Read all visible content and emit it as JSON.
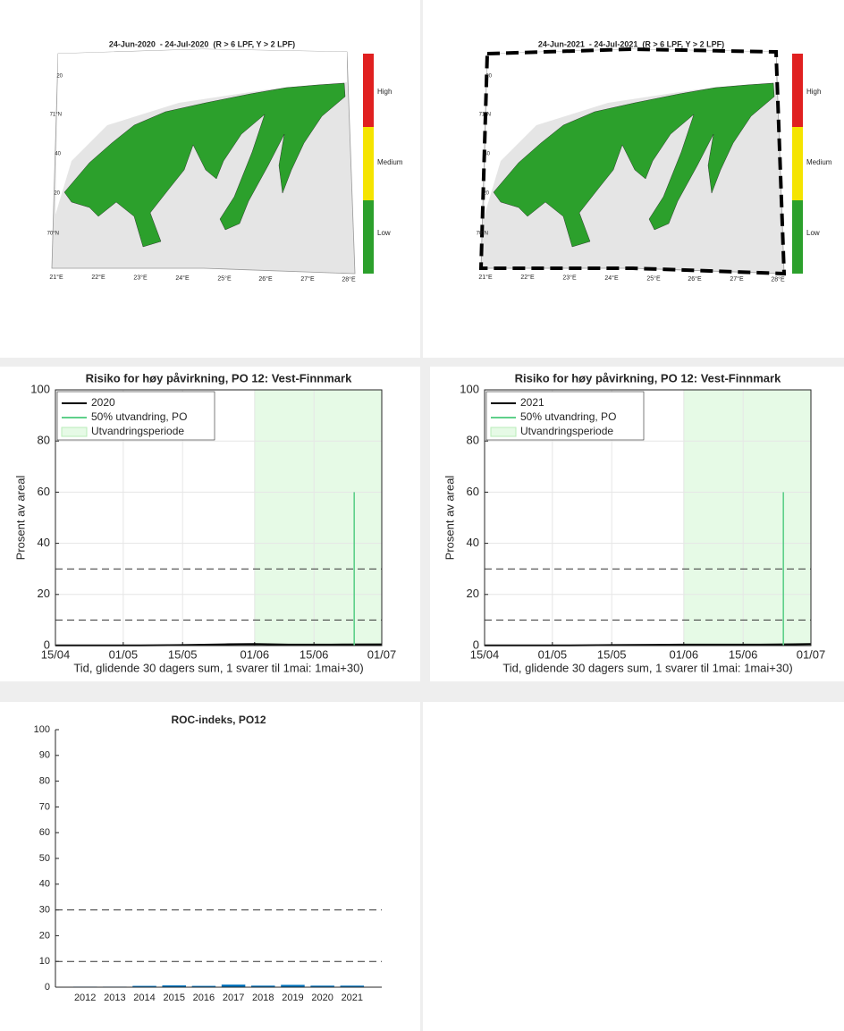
{
  "maps": [
    {
      "title": "24-Jun-2020  - 24-Jul-2020  (R > 6 LPF, Y > 2 LPF)",
      "lat_labels": [
        "20",
        "71°N",
        "40",
        "20",
        "70°N"
      ],
      "lon_labels": [
        "21°E",
        "22°E",
        "23°E",
        "24°E",
        "25°E",
        "26°E",
        "27°E",
        "28°E"
      ],
      "colorbar_labels": [
        "High",
        "Medium",
        "Low"
      ],
      "dashed_border": false
    },
    {
      "title": "24-Jun-2021  - 24-Jul-2021  (R > 6 LPF, Y > 2 LPF)",
      "lat_labels": [
        "20",
        "71°N",
        "40",
        "20",
        "70°N"
      ],
      "lon_labels": [
        "21°E",
        "22°E",
        "23°E",
        "24°E",
        "25°E",
        "26°E",
        "27°E",
        "28°E"
      ],
      "colorbar_labels": [
        "High",
        "Medium",
        "Low"
      ],
      "dashed_border": true
    }
  ],
  "chart_data": [
    {
      "type": "line",
      "title": "Risiko for høy påvirkning, PO 12: Vest-Finnmark",
      "ylabel": "Prosent av areal",
      "xlabel": "Tid, glidende 30 dagers sum, 1 svarer til 1mai: 1mai+30)",
      "xlim": [
        0,
        77
      ],
      "xticks": [
        {
          "value": 0,
          "label": "15/04"
        },
        {
          "value": 16,
          "label": "01/05"
        },
        {
          "value": 30,
          "label": "15/05"
        },
        {
          "value": 47,
          "label": "01/06"
        },
        {
          "value": 61,
          "label": "15/06"
        },
        {
          "value": 77,
          "label": "01/07"
        }
      ],
      "ylim": [
        0,
        100
      ],
      "yticks": [
        0,
        20,
        40,
        60,
        80,
        100
      ],
      "grid": true,
      "hlines": [
        10,
        30
      ],
      "span": {
        "name": "Utvandringsperiode",
        "color": "#e6fae6",
        "x": [
          47,
          77
        ]
      },
      "series": [
        {
          "name": "2020",
          "color": "#000000",
          "x": [
            0,
            10,
            20,
            30,
            40,
            47,
            55,
            65,
            77
          ],
          "values": [
            0.1,
            0.1,
            0.1,
            0.2,
            0.5,
            0.6,
            0.4,
            0.4,
            0.5
          ]
        },
        {
          "name": "50% utvandring, PO",
          "color": "#5fd08a",
          "x": [
            70.5,
            70.5
          ],
          "values": [
            0,
            60
          ]
        }
      ]
    },
    {
      "type": "line",
      "title": "Risiko for høy påvirkning, PO 12: Vest-Finnmark",
      "ylabel": "Prosent av areal",
      "xlabel": "Tid, glidende 30 dagers sum, 1 svarer til 1mai: 1mai+30)",
      "xlim": [
        0,
        77
      ],
      "xticks": [
        {
          "value": 0,
          "label": "15/04"
        },
        {
          "value": 16,
          "label": "01/05"
        },
        {
          "value": 30,
          "label": "15/05"
        },
        {
          "value": 47,
          "label": "01/06"
        },
        {
          "value": 61,
          "label": "15/06"
        },
        {
          "value": 77,
          "label": "01/07"
        }
      ],
      "ylim": [
        0,
        100
      ],
      "yticks": [
        0,
        20,
        40,
        60,
        80,
        100
      ],
      "grid": true,
      "hlines": [
        10,
        30
      ],
      "span": {
        "name": "Utvandringsperiode",
        "color": "#e6fae6",
        "x": [
          47,
          77
        ]
      },
      "series": [
        {
          "name": "2021",
          "color": "#000000",
          "x": [
            0,
            10,
            20,
            30,
            40,
            47,
            55,
            65,
            77
          ],
          "values": [
            0.1,
            0.1,
            0.1,
            0.2,
            0.3,
            0.4,
            0.4,
            0.4,
            0.6
          ]
        },
        {
          "name": "50% utvandring, PO",
          "color": "#5fd08a",
          "x": [
            70.5,
            70.5
          ],
          "values": [
            0,
            60
          ]
        }
      ]
    },
    {
      "type": "bar",
      "title": "ROC-indeks, PO12",
      "categories": [
        "2012",
        "2013",
        "2014",
        "2015",
        "2016",
        "2017",
        "2018",
        "2019",
        "2020",
        "2021"
      ],
      "values": [
        0.2,
        0.2,
        0.5,
        0.7,
        0.5,
        1.0,
        0.6,
        0.9,
        0.6,
        0.6
      ],
      "color": "#0072bd",
      "ylim": [
        0,
        100
      ],
      "yticks": [
        0,
        10,
        20,
        30,
        40,
        50,
        60,
        70,
        80,
        90,
        100
      ],
      "grid": false,
      "hlines": [
        10,
        30
      ]
    }
  ]
}
